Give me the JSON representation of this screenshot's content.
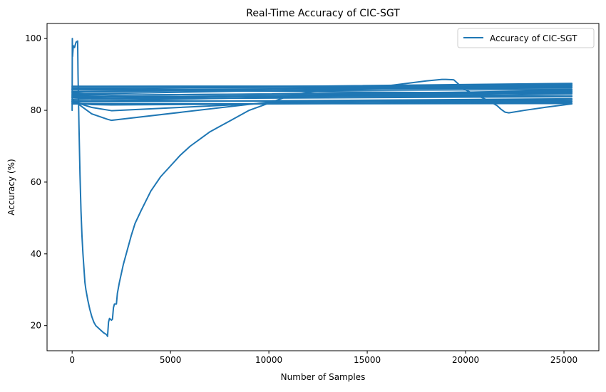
{
  "chart_data": {
    "type": "line",
    "title": "Real-Time Accuracy of CIC-SGT",
    "xlabel": "Number of Samples",
    "ylabel": "Accuracy (%)",
    "xlim": [
      -1275,
      26775
    ],
    "ylim": [
      13.0,
      104.2
    ],
    "xticks": [
      0,
      5000,
      10000,
      15000,
      20000,
      25000
    ],
    "xtick_labels": [
      "0",
      "5000",
      "10000",
      "15000",
      "20000",
      "25000"
    ],
    "yticks": [
      20,
      40,
      60,
      80,
      100
    ],
    "ytick_labels": [
      "20",
      "40",
      "60",
      "80",
      "100"
    ],
    "grid": false,
    "legend_position": "top-right",
    "series": [
      {
        "name": "Accuracy of CIC-SGT",
        "color": "#1f77b4",
        "segments": [
          [
            [
              0,
              80
            ],
            [
              10,
              100
            ],
            [
              20,
              95
            ],
            [
              60,
              98
            ],
            [
              120,
              97.5
            ],
            [
              200,
              99
            ],
            [
              280,
              99.3
            ],
            [
              300,
              90
            ],
            [
              350,
              75
            ],
            [
              400,
              62
            ],
            [
              450,
              52
            ],
            [
              500,
              45
            ],
            [
              550,
              40
            ],
            [
              600,
              36
            ],
            [
              650,
              32
            ],
            [
              700,
              30
            ],
            [
              800,
              27
            ],
            [
              900,
              24.5
            ],
            [
              1000,
              22.5
            ],
            [
              1100,
              21
            ],
            [
              1200,
              20
            ],
            [
              1400,
              19
            ],
            [
              1600,
              18
            ],
            [
              1750,
              17.5
            ],
            [
              1800,
              17
            ],
            [
              1850,
              21
            ],
            [
              1900,
              22
            ],
            [
              2000,
              21.5
            ],
            [
              2050,
              21.8
            ],
            [
              2100,
              25
            ],
            [
              2150,
              26
            ],
            [
              2250,
              26
            ],
            [
              2300,
              29
            ],
            [
              2400,
              32
            ],
            [
              2600,
              37
            ],
            [
              2800,
              41
            ],
            [
              3000,
              45
            ],
            [
              3200,
              48.5
            ],
            [
              3500,
              52
            ],
            [
              4000,
              57.5
            ],
            [
              4500,
              61.5
            ],
            [
              5000,
              64.5
            ],
            [
              5500,
              67.5
            ],
            [
              6000,
              70
            ],
            [
              6500,
              72
            ],
            [
              7000,
              74
            ],
            [
              7500,
              75.5
            ],
            [
              8000,
              77
            ],
            [
              8500,
              78.5
            ],
            [
              9000,
              80
            ],
            [
              9500,
              81
            ],
            [
              10000,
              82
            ],
            [
              10500,
              83
            ],
            [
              11000,
              84
            ],
            [
              11500,
              84.5
            ],
            [
              12000,
              85
            ],
            [
              12500,
              85.3
            ],
            [
              13000,
              85.5
            ],
            [
              14000,
              85.8
            ],
            [
              15000,
              86.2
            ],
            [
              16000,
              86.8
            ],
            [
              17000,
              87.5
            ],
            [
              18000,
              88.2
            ],
            [
              18800,
              88.6
            ],
            [
              19000,
              88.6
            ],
            [
              19400,
              88.5
            ],
            [
              19700,
              87
            ],
            [
              20000,
              85.7
            ],
            [
              20400,
              84.6
            ],
            [
              20800,
              83.6
            ],
            [
              21200,
              82.6
            ],
            [
              21600,
              81.3
            ],
            [
              21800,
              80.3
            ],
            [
              22000,
              79.5
            ],
            [
              22200,
              79.3
            ],
            [
              23000,
              80
            ],
            [
              24000,
              80.8
            ],
            [
              25400,
              81.8
            ]
          ],
          [
            [
              0,
              86
            ],
            [
              25400,
              87.5
            ]
          ],
          [
            [
              0,
              85
            ],
            [
              25400,
              87.3
            ]
          ],
          [
            [
              0,
              84.5
            ],
            [
              25400,
              87
            ]
          ],
          [
            [
              0,
              86.7
            ],
            [
              25400,
              86.8
            ]
          ],
          [
            [
              0,
              86.3
            ],
            [
              25400,
              86.5
            ]
          ],
          [
            [
              0,
              85.8
            ],
            [
              25400,
              86.2
            ]
          ],
          [
            [
              0,
              85.3
            ],
            [
              25400,
              85.8
            ]
          ],
          [
            [
              0,
              83
            ],
            [
              25400,
              85.6
            ]
          ],
          [
            [
              0,
              82.5
            ],
            [
              25400,
              85.3
            ]
          ],
          [
            [
              0,
              84.8
            ],
            [
              1000,
              84.4
            ],
            [
              2000,
              84.2
            ],
            [
              25400,
              85.3
            ]
          ],
          [
            [
              0,
              84.2
            ],
            [
              25400,
              85
            ]
          ],
          [
            [
              0,
              83.5
            ],
            [
              25400,
              84.9
            ]
          ],
          [
            [
              0,
              85.8
            ],
            [
              25400,
              84.6
            ]
          ],
          [
            [
              0,
              84
            ],
            [
              2000,
              83.7
            ],
            [
              10000,
              84.1
            ],
            [
              22000,
              84.3
            ],
            [
              25400,
              84.6
            ]
          ],
          [
            [
              0,
              83.8
            ],
            [
              25400,
              84
            ]
          ],
          [
            [
              0,
              83.5
            ],
            [
              1000,
              83.2
            ],
            [
              2000,
              83.2
            ],
            [
              25400,
              83.8
            ]
          ],
          [
            [
              0,
              82.3
            ],
            [
              25400,
              83.2
            ]
          ],
          [
            [
              0,
              82.6
            ],
            [
              25400,
              82.6
            ]
          ],
          [
            [
              0,
              81.8
            ],
            [
              25400,
              81.9
            ]
          ],
          [
            [
              0,
              82
            ],
            [
              1000,
              81.6
            ],
            [
              2000,
              81.5
            ],
            [
              10000,
              81.8
            ],
            [
              25400,
              82.3
            ]
          ],
          [
            [
              0,
              82.5
            ],
            [
              1000,
              80.8
            ],
            [
              2000,
              79.9
            ],
            [
              10000,
              82
            ],
            [
              25400,
              82.5
            ]
          ],
          [
            [
              0,
              83
            ],
            [
              1000,
              79
            ],
            [
              1800,
              77.5
            ],
            [
              2000,
              77.2
            ],
            [
              10000,
              82.3
            ],
            [
              25400,
              83
            ]
          ]
        ]
      }
    ]
  }
}
